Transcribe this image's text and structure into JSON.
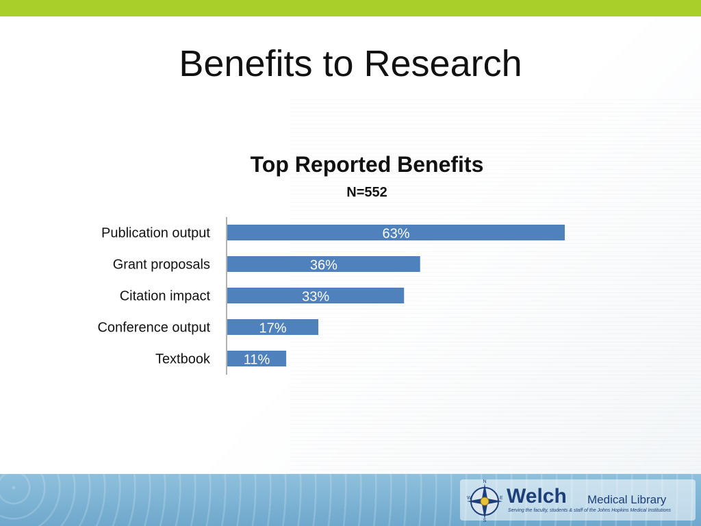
{
  "slide": {
    "title": "Benefits to Research"
  },
  "colors": {
    "accent_bar": "#a9cf2b",
    "bar": "#4f81bd",
    "footer": "#7db4d6",
    "logo_text": "#1d3e79"
  },
  "chart_data": {
    "type": "bar",
    "orientation": "horizontal",
    "title": "Top Reported Benefits",
    "subtitle": "N=552",
    "categories": [
      "Publication output",
      "Grant proposals",
      "Citation impact",
      "Conference output",
      "Textbook"
    ],
    "values": [
      63,
      36,
      33,
      17,
      11
    ],
    "value_labels": [
      "63%",
      "36%",
      "33%",
      "17%",
      "11%"
    ],
    "xlim": [
      0,
      100
    ],
    "grid": false,
    "legend": "none"
  },
  "footer": {
    "logo_name": "Welch",
    "logo_subname": "Medical Library",
    "logo_tagline": "Serving the faculty, students & staff of the Johns Hopkins Medical Institutions",
    "compass_icon": "compass-rose-icon"
  }
}
